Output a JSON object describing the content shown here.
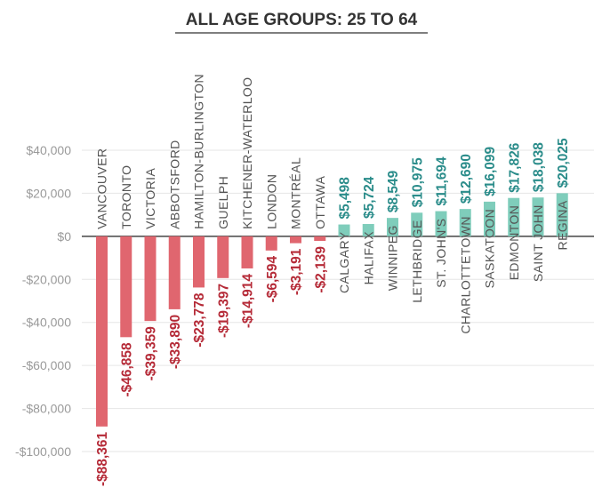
{
  "chart_data": {
    "type": "bar",
    "title": "ALL AGE GROUPS: 25 TO 64",
    "xlabel": "",
    "ylabel": "",
    "ylim": [
      -100000,
      40000
    ],
    "y_ticks": [
      40000,
      20000,
      0,
      -20000,
      -40000,
      -60000,
      -80000,
      -100000
    ],
    "y_tick_labels": [
      "$40,000",
      "$20,000",
      "$0",
      "-$20,000",
      "-$40,000",
      "-$60,000",
      "-$80,000",
      "-$100,000"
    ],
    "grid": true,
    "categories": [
      "VANCOUVER",
      "TORONTO",
      "VICTORIA",
      "ABBOTSFORD",
      "HAMILTON-BURLINGTON",
      "GUELPH",
      "KITCHENER-WATERLOO",
      "LONDON",
      "MONTRÉAL",
      "OTTAWA",
      "CALGARY",
      "HALIFAX",
      "WINNIPEG",
      "LETHBRIDGE",
      "ST. JOHN'S",
      "CHARLOTTETOWN",
      "SASKATOON",
      "EDMONTON",
      "SAINT JOHN",
      "REGINA"
    ],
    "values": [
      -88361,
      -46858,
      -39359,
      -33890,
      -23778,
      -19397,
      -14914,
      -6594,
      -3191,
      -2139,
      5498,
      5724,
      8549,
      10975,
      11694,
      12690,
      16099,
      17826,
      18038,
      20025
    ],
    "value_labels": [
      "-$88,361",
      "-$46,858",
      "-$39,359",
      "-$33,890",
      "-$23,778",
      "-$19,397",
      "-$14,914",
      "-$6,594",
      "-$3,191",
      "-$2,139",
      "$5,498",
      "$5,724",
      "$8,549",
      "$10,975",
      "$11,694",
      "$12,690",
      "$16,099",
      "$17,826",
      "$18,038",
      "$20,025"
    ],
    "colors": {
      "negative": "#e0666f",
      "positive": "#7fcdbb",
      "negative_label": "#b52a37",
      "positive_label": "#2a8c8a",
      "grid": "#e6e6e6",
      "zero_line": "#444444",
      "title_underline": "#555555"
    }
  }
}
